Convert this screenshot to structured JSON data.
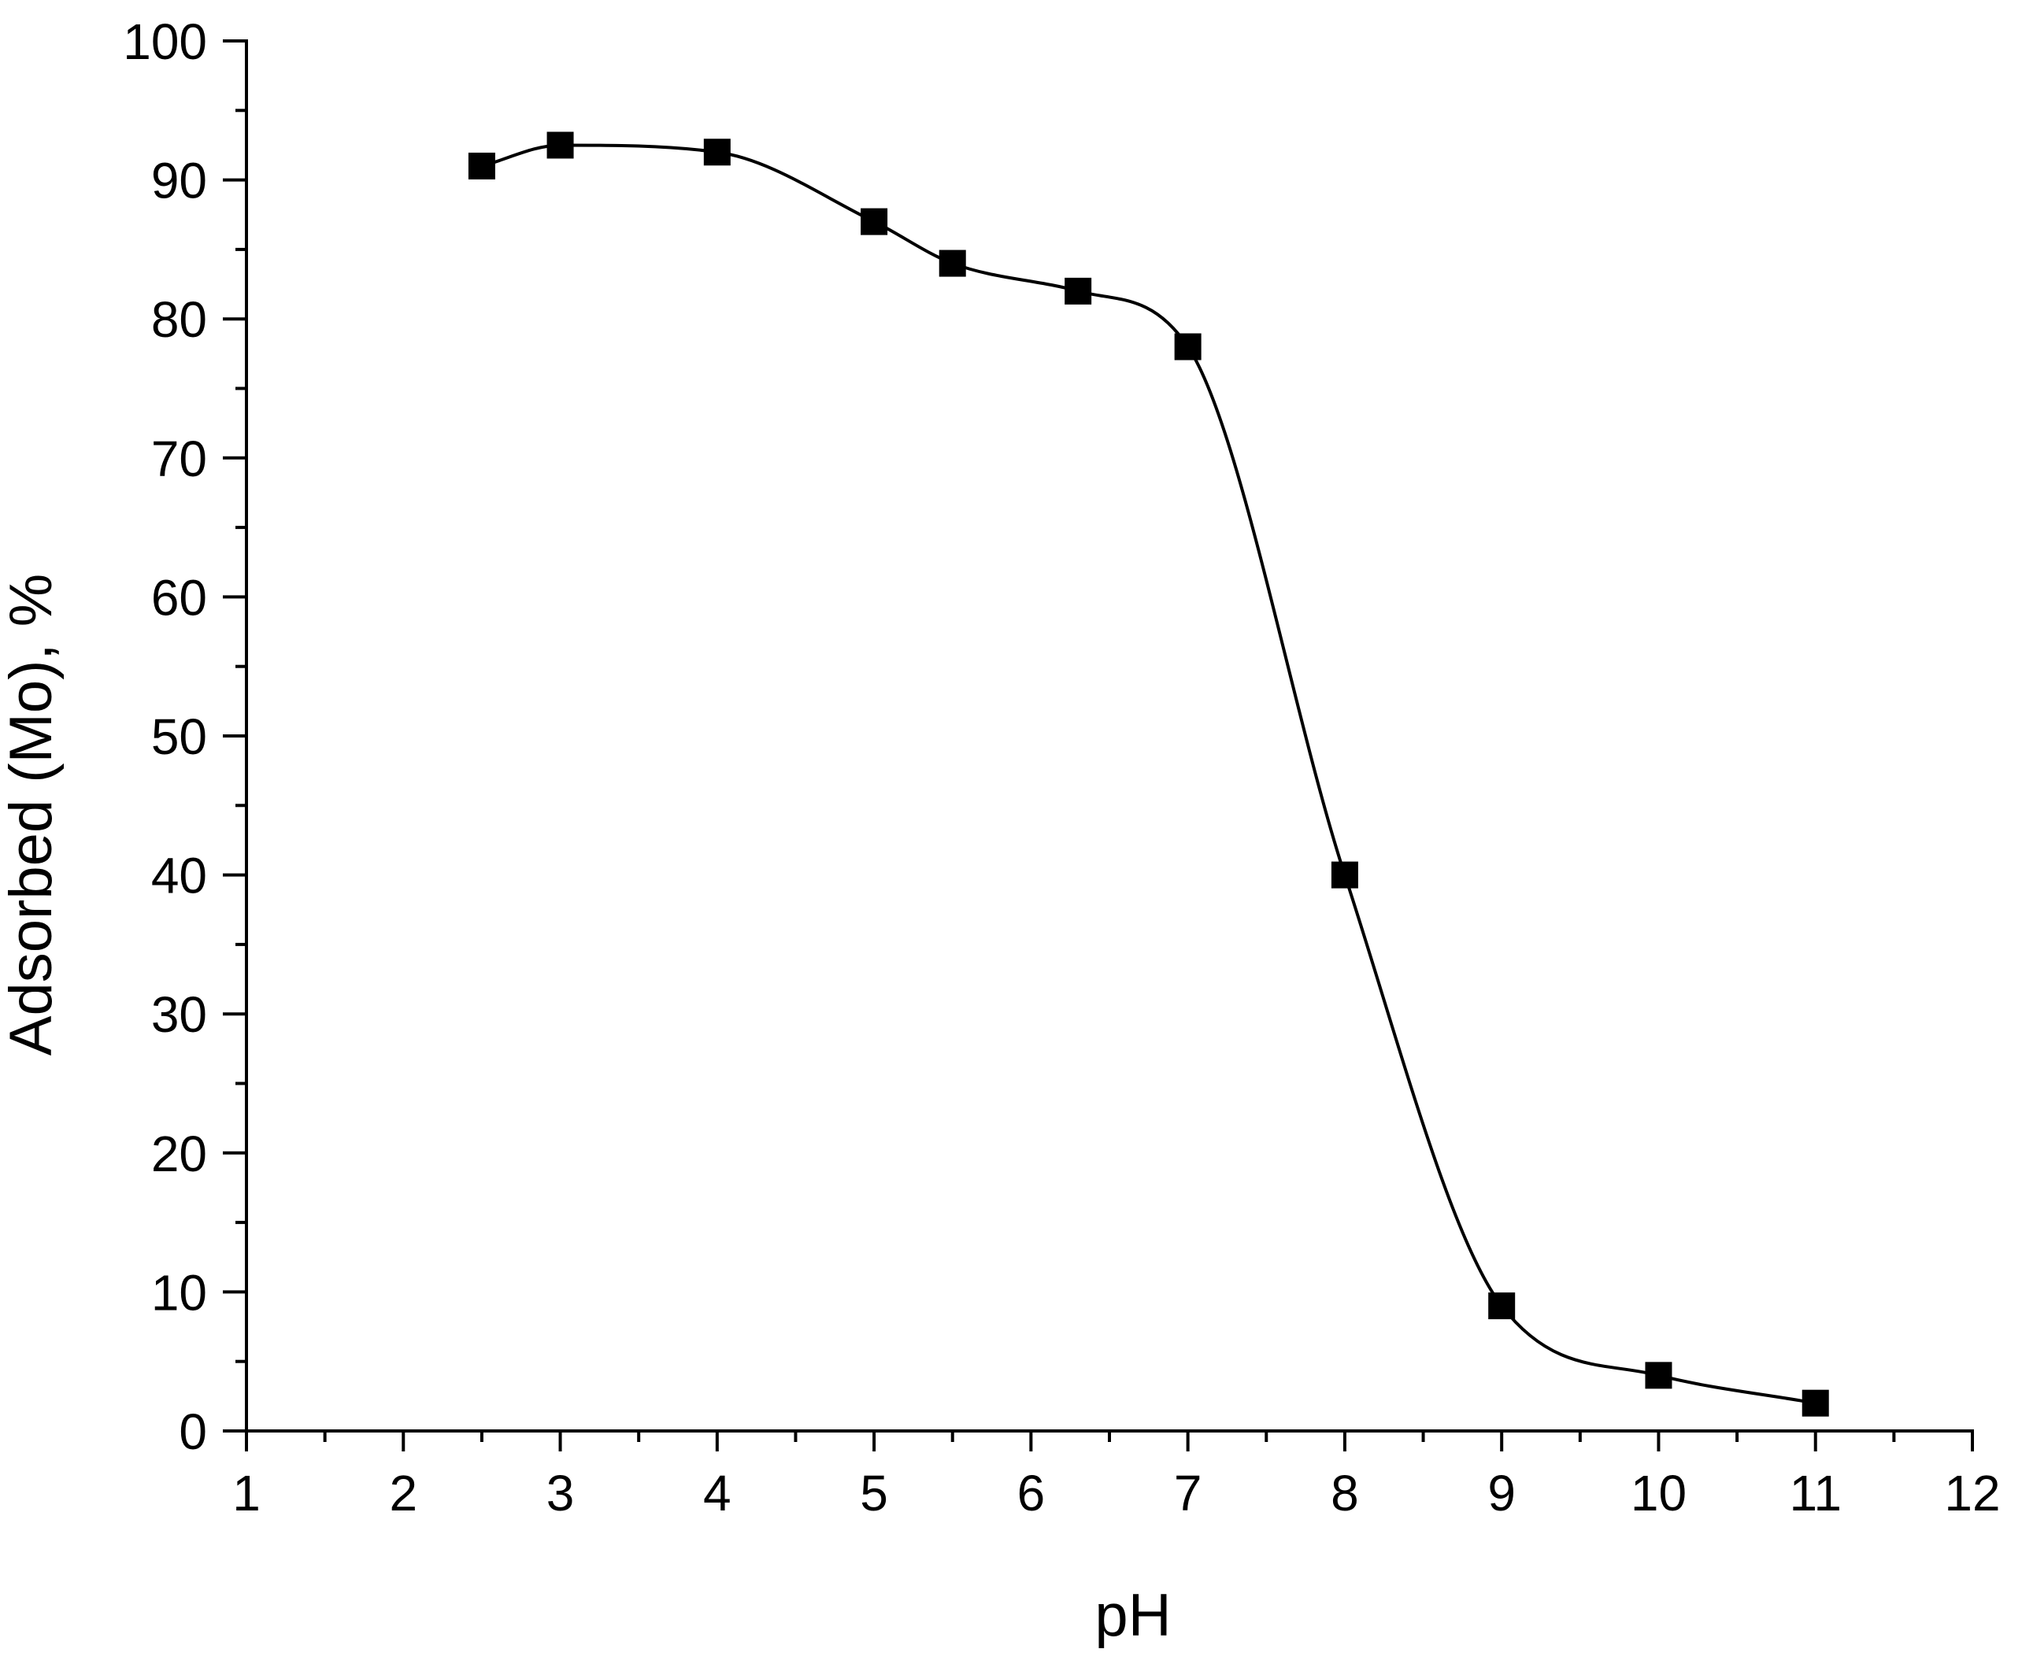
{
  "chart_data": {
    "type": "line",
    "title": "",
    "xlabel": "pH",
    "ylabel": "Adsorbed (Mo), %",
    "xlim": [
      1,
      12
    ],
    "ylim": [
      0,
      100
    ],
    "x_ticks": [
      1,
      2,
      3,
      4,
      5,
      6,
      7,
      8,
      9,
      10,
      11,
      12
    ],
    "x_tick_labels": [
      "1",
      "2",
      "3",
      "4",
      "5",
      "6",
      "7",
      "8",
      "9",
      "10",
      "11",
      "12"
    ],
    "y_ticks": [
      0,
      10,
      20,
      30,
      40,
      50,
      60,
      70,
      80,
      90,
      100
    ],
    "y_tick_labels": [
      "0",
      "10",
      "20",
      "30",
      "40",
      "50",
      "60",
      "70",
      "80",
      "90",
      "100"
    ],
    "grid": false,
    "legend": "none",
    "marker": "square",
    "line_style": "smooth",
    "colors": {
      "line": "#000000",
      "marker": "#000000",
      "axis": "#000000"
    },
    "series": [
      {
        "x": [
          2.5,
          3,
          4,
          5,
          5.5,
          6.3,
          7,
          8,
          9,
          10,
          11
        ],
        "y": [
          91,
          92.5,
          92,
          87,
          84,
          82,
          78,
          40,
          9,
          4,
          2
        ]
      }
    ]
  }
}
